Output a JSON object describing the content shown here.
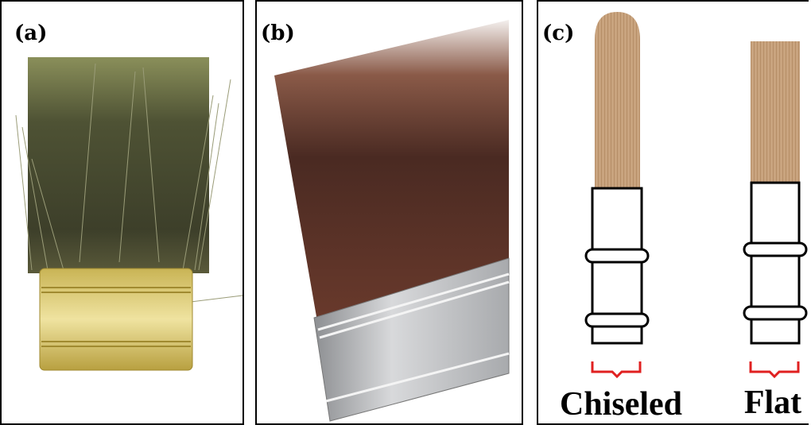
{
  "panels": [
    {
      "label": "(a)"
    },
    {
      "label": "(b)"
    },
    {
      "label": "(c)",
      "captions": [
        "Chiseled",
        "Flat"
      ]
    }
  ]
}
